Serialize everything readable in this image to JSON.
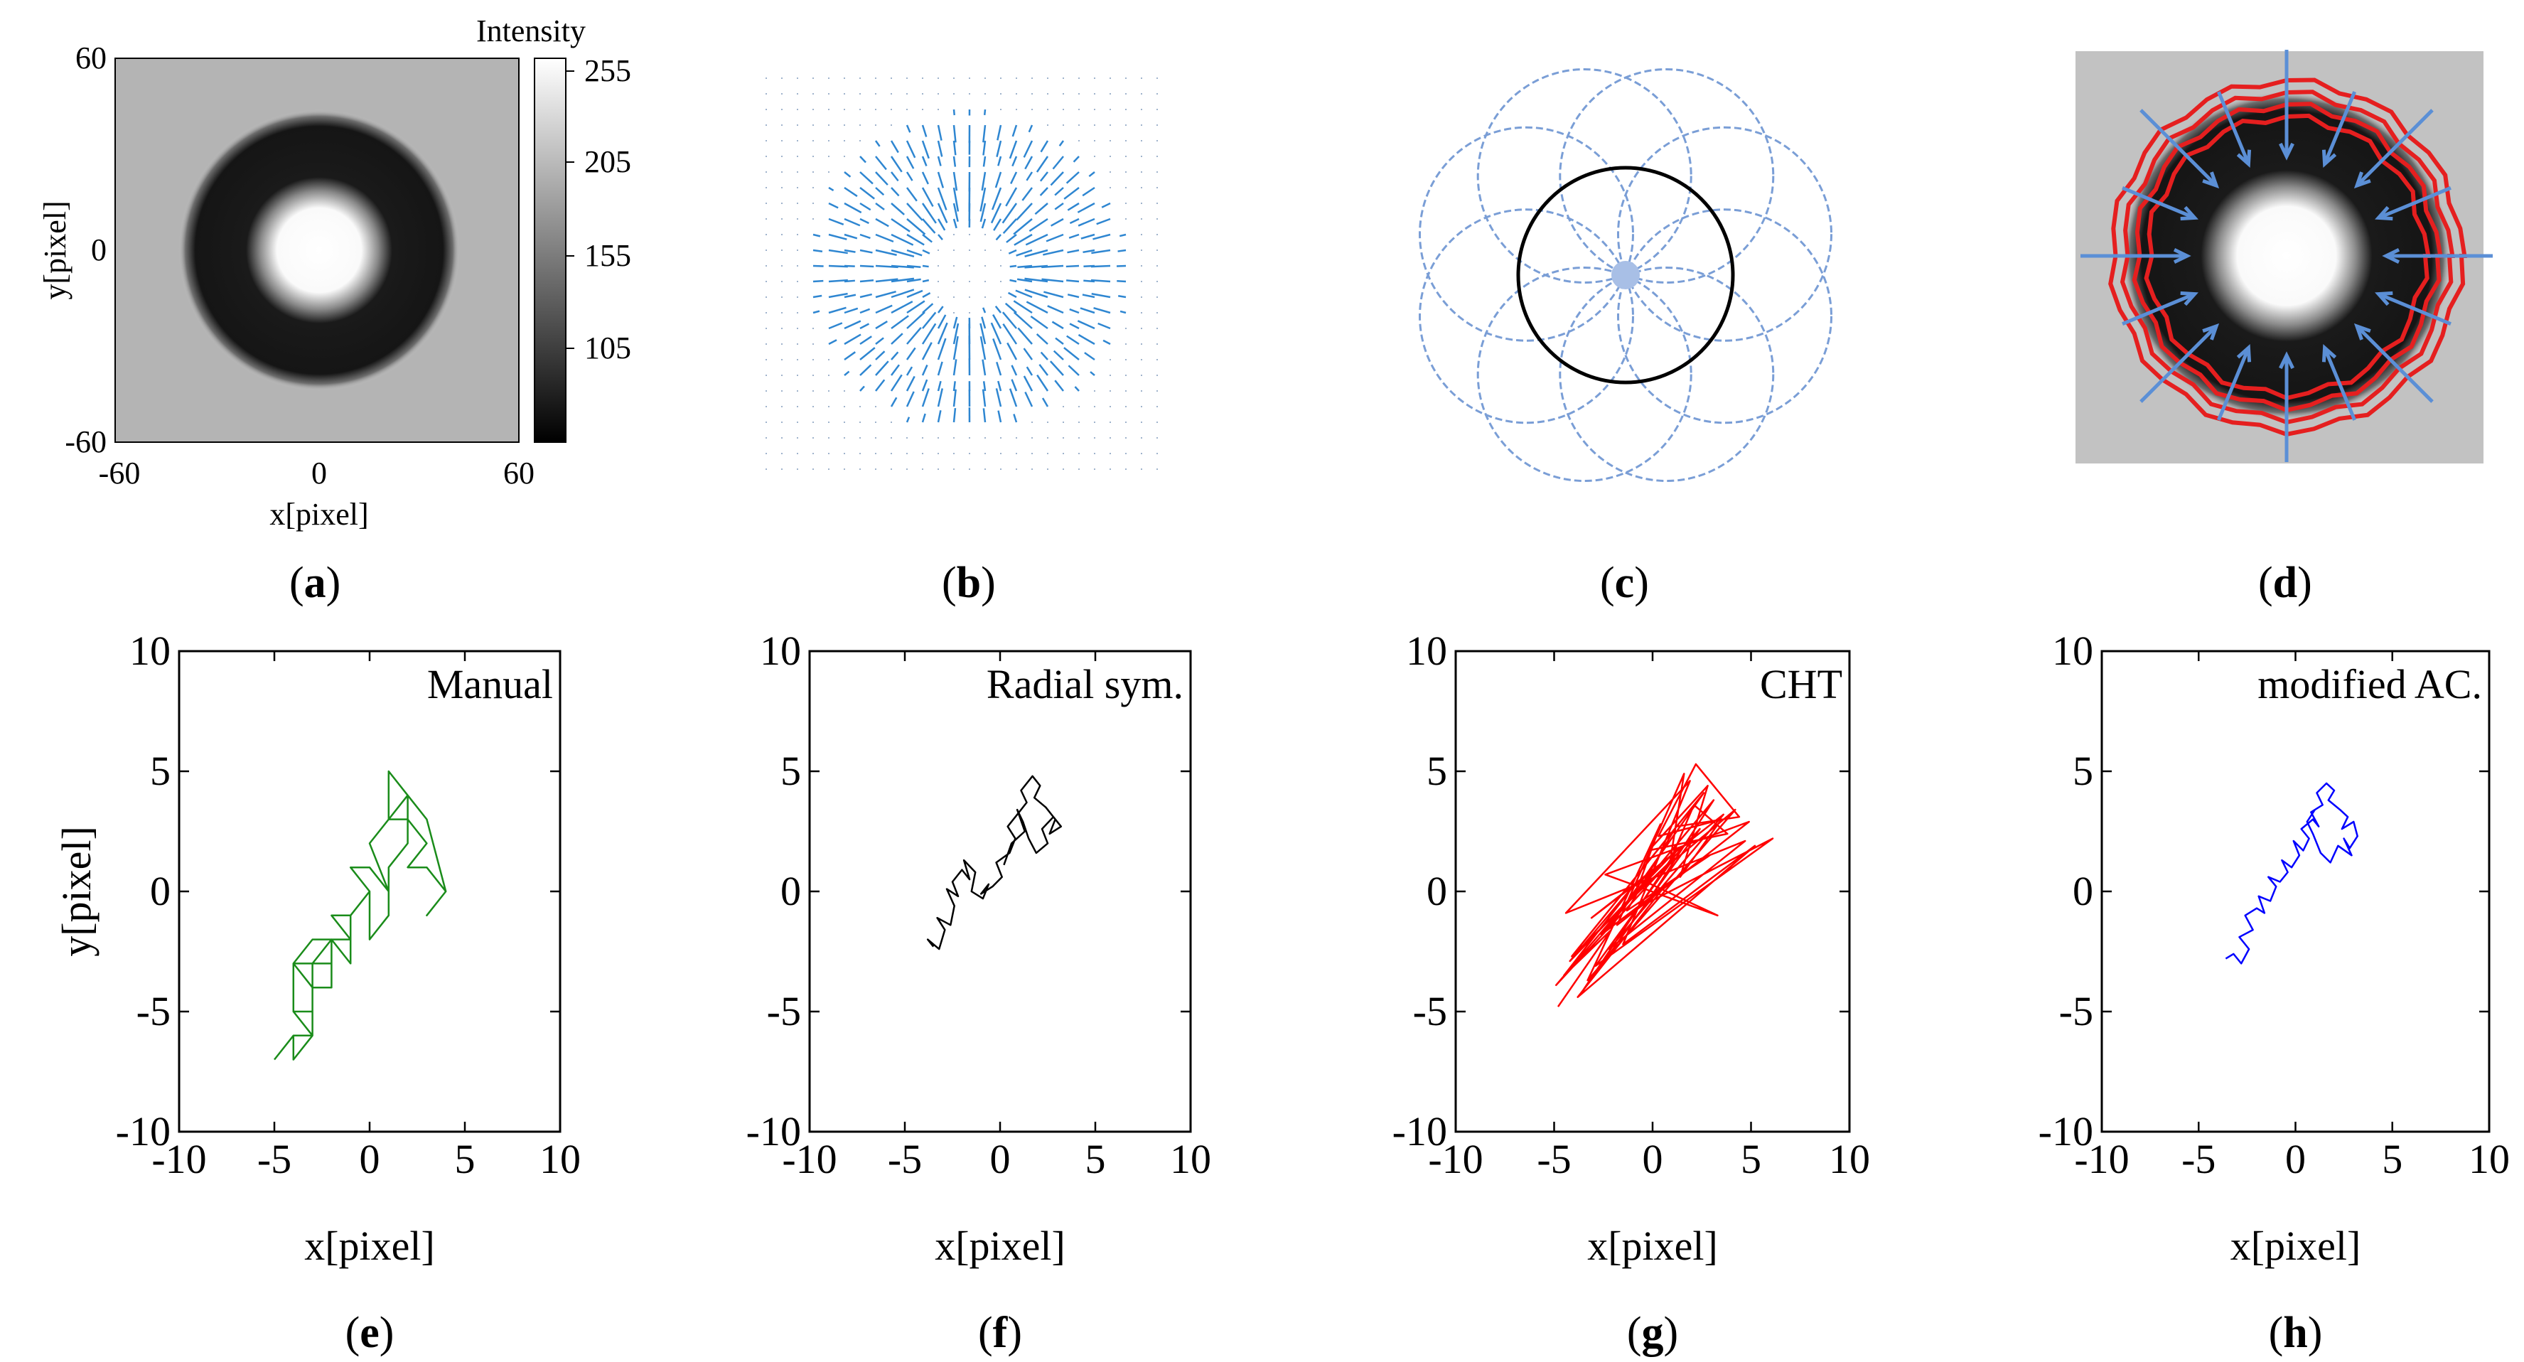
{
  "panels": {
    "a": {
      "caption": "a",
      "title": "Intensity",
      "xlabel": "x[pixel]",
      "ylabel": "y[pixel]",
      "xticks": [
        "-60",
        "0",
        "60"
      ],
      "yticks": [
        "60",
        "0",
        "-60"
      ],
      "colorbar_ticks": [
        "255",
        "205",
        "155",
        "105"
      ]
    },
    "b": {
      "caption": "b"
    },
    "c": {
      "caption": "c"
    },
    "d": {
      "caption": "d"
    }
  },
  "chart_data": [
    {
      "id": "e",
      "type": "line",
      "caption": "e",
      "title": "Manual",
      "xlabel": "x[pixel]",
      "ylabel": "y[pixel]",
      "xlim": [
        -10,
        10
      ],
      "ylim": [
        -10,
        10
      ],
      "xticks": [
        "-10",
        "-5",
        "0",
        "5",
        "10"
      ],
      "yticks": [
        "10",
        "5",
        "0",
        "-5",
        "-10"
      ],
      "color": "#1a8c1a",
      "x": [
        -5,
        -4,
        -4,
        -3,
        -4,
        -3,
        -3,
        -4,
        -3,
        -2,
        -3,
        -2,
        -2,
        -1,
        -2,
        -1,
        0,
        -1,
        0,
        1,
        0,
        1,
        1,
        2,
        1,
        2,
        3,
        2,
        3,
        4,
        3,
        4,
        3,
        2,
        2,
        1,
        1,
        0,
        0,
        -1,
        -1,
        -2,
        -2,
        -3,
        -3,
        -4,
        -4,
        -3,
        -3,
        -4,
        -5
      ],
      "y": [
        -7,
        -6,
        -7,
        -6,
        -5,
        -5,
        -4,
        -3,
        -2,
        -2,
        -3,
        -3,
        -2,
        -2,
        -1,
        -1,
        0,
        1,
        1,
        0,
        2,
        3,
        5,
        4,
        3,
        3,
        2,
        1,
        1,
        0,
        -1,
        0,
        3,
        4,
        2,
        1,
        -1,
        -2,
        0,
        -1,
        -3,
        -2,
        -4,
        -4,
        -3,
        -3,
        -5,
        -5,
        -6,
        -6,
        -7
      ]
    },
    {
      "id": "f",
      "type": "line",
      "caption": "f",
      "title": "Radial sym.",
      "xlabel": "x[pixel]",
      "ylabel": "",
      "xlim": [
        -10,
        10
      ],
      "ylim": [
        -10,
        10
      ],
      "xticks": [
        "-10",
        "-5",
        "0",
        "5",
        "10"
      ],
      "yticks": [
        "10",
        "5",
        "0",
        "-5",
        "-10"
      ],
      "color": "#000000",
      "x": [
        -3.5,
        -3.8,
        -3.2,
        -2.9,
        -3.3,
        -2.6,
        -2.4,
        -2.8,
        -2.2,
        -2.5,
        -2.0,
        -1.6,
        -1.9,
        -1.3,
        -1.5,
        -0.9,
        -0.6,
        -1.0,
        -0.4,
        0.1,
        -0.2,
        0.5,
        0.8,
        0.4,
        1.0,
        1.4,
        1.1,
        1.7,
        2.1,
        1.8,
        2.4,
        2.9,
        2.6,
        3.2,
        2.8,
        2.2,
        2.5,
        1.9,
        1.5,
        1.2,
        0.9,
        1.3,
        0.6,
        0.2
      ],
      "y": [
        -2.3,
        -2.0,
        -2.4,
        -1.6,
        -1.1,
        -1.4,
        -0.6,
        0.1,
        -0.2,
        0.4,
        0.9,
        0.5,
        1.3,
        0.8,
        0.0,
        -0.3,
        0.3,
        -0.1,
        0.2,
        0.6,
        1.2,
        1.6,
        2.2,
        2.7,
        3.3,
        3.7,
        4.2,
        4.8,
        4.4,
        3.9,
        3.5,
        3.0,
        2.4,
        2.7,
        3.1,
        2.6,
        2.0,
        1.6,
        2.2,
        2.9,
        3.4,
        2.5,
        2.0,
        1.1
      ]
    },
    {
      "id": "g",
      "type": "line",
      "caption": "g",
      "title": "CHT",
      "xlabel": "x[pixel]",
      "ylabel": "",
      "xlim": [
        -10,
        10
      ],
      "ylim": [
        -10,
        10
      ],
      "xticks": [
        "-10",
        "-5",
        "0",
        "5",
        "10"
      ],
      "yticks": [
        "10",
        "5",
        "0",
        "-5",
        "-10"
      ],
      "color": "#ff0000",
      "x": [
        -4.8,
        -2.1,
        -4.5,
        -0.8,
        -4.2,
        1.3,
        -3.6,
        2.4,
        -4.9,
        0.1,
        -3.1,
        3.6,
        -2.2,
        4.7,
        -4.4,
        1.9,
        -1.5,
        5.2,
        -3.8,
        0.6,
        -2.6,
        3.1,
        -0.3,
        6.1,
        -2.9,
        1.1,
        -4.1,
        2.6,
        -1.1,
        4.2,
        -3.3,
        0.4,
        -0.6,
        3.3,
        -2.4,
        4.9,
        -1.8,
        1.6,
        0.9,
        2.1,
        3.8,
        -0.2,
        2.8,
        1.4,
        3.5,
        0.3,
        2.2,
        4.4,
        1.2,
        -1.3,
        2.9
      ],
      "y": [
        -4.8,
        -1.6,
        -3.5,
        0.4,
        -2.9,
        1.8,
        -4.2,
        2.6,
        -3.9,
        0.9,
        -1.1,
        3.2,
        -2.4,
        2.1,
        -0.9,
        4.6,
        -2.2,
        1.9,
        -4.4,
        0.2,
        -1.8,
        3.8,
        -0.5,
        2.2,
        -3.1,
        1.4,
        -2.7,
        4.1,
        -0.2,
        3.4,
        -3.7,
        2.8,
        0.5,
        -1.0,
        0.7,
        2.9,
        -1.4,
        4.9,
        1.3,
        3.6,
        2.4,
        1.7,
        4.4,
        0.6,
        3.0,
        2.3,
        5.3,
        3.1,
        2.7,
        -0.8,
        1.5
      ]
    },
    {
      "id": "h",
      "type": "line",
      "caption": "h",
      "title": "modified AC.",
      "xlabel": "x[pixel]",
      "ylabel": "",
      "xlim": [
        -10,
        10
      ],
      "ylim": [
        -10,
        10
      ],
      "xticks": [
        "-10",
        "-5",
        "0",
        "5",
        "10"
      ],
      "yticks": [
        "10",
        "5",
        "0",
        "-5",
        "-10"
      ],
      "color": "#0000ff",
      "x": [
        -3.6,
        -3.2,
        -2.8,
        -2.4,
        -2.9,
        -2.2,
        -2.6,
        -2.0,
        -1.6,
        -1.9,
        -1.3,
        -1.0,
        -1.4,
        -0.8,
        -0.4,
        -0.7,
        -0.2,
        0.2,
        -0.1,
        0.4,
        0.7,
        0.3,
        0.9,
        1.2,
        0.8,
        1.4,
        1.1,
        1.6,
        2.0,
        1.7,
        2.3,
        2.7,
        2.4,
        3.0,
        3.2,
        2.8,
        2.5,
        2.9,
        2.2,
        1.8,
        1.3,
        0.9,
        0.6,
        1.0
      ],
      "y": [
        -2.8,
        -2.6,
        -3.0,
        -2.4,
        -1.9,
        -1.6,
        -1.0,
        -0.7,
        -0.9,
        -0.2,
        -0.4,
        0.2,
        0.6,
        0.4,
        0.8,
        1.3,
        1.0,
        1.5,
        2.1,
        1.7,
        2.2,
        2.6,
        3.0,
        2.7,
        3.3,
        3.6,
        4.1,
        4.5,
        4.2,
        3.8,
        3.4,
        3.1,
        2.6,
        2.9,
        2.3,
        1.8,
        2.2,
        1.5,
        1.9,
        1.2,
        1.6,
        2.4,
        2.9,
        3.4
      ]
    }
  ]
}
